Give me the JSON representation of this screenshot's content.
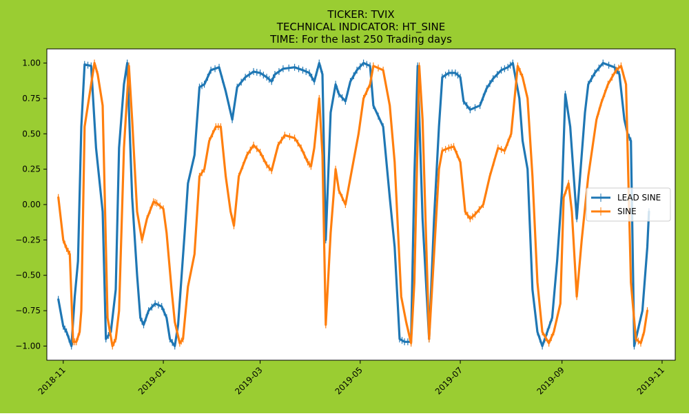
{
  "figure": {
    "background": "#9ACD32"
  },
  "chart_data": {
    "type": "line",
    "title_lines": [
      "TICKER:  TVIX",
      "TECHNICAL INDICATOR:  HT_SINE",
      "TIME: For the last 250 Trading days"
    ],
    "xlabel": "",
    "ylabel": "",
    "x_type": "date",
    "xlim": [
      "2018-10-22",
      "2019-11-09"
    ],
    "ylim": [
      -1.1,
      1.1
    ],
    "yticks": [
      -1.0,
      -0.75,
      -0.5,
      -0.25,
      0.0,
      0.25,
      0.5,
      0.75,
      1.0
    ],
    "ytick_labels": [
      "−1.00",
      "−0.75",
      "−0.50",
      "−0.25",
      "0.00",
      "0.25",
      "0.50",
      "0.75",
      "1.00"
    ],
    "xticks": [
      "2018-11-01",
      "2019-01-01",
      "2019-03-01",
      "2019-05-01",
      "2019-07-01",
      "2019-09-01",
      "2019-11-01"
    ],
    "xtick_labels": [
      "2018-11",
      "2019-01",
      "2019-03",
      "2019-05",
      "2019-07",
      "2019-09",
      "2019-11"
    ],
    "grid": false,
    "legend_position": "center-right",
    "series": [
      {
        "name": "LEAD SINE",
        "color": "#1f77b4",
        "points": [
          [
            "2018-10-29",
            -0.67
          ],
          [
            "2018-11-01",
            -0.86
          ],
          [
            "2018-11-03",
            -0.9
          ],
          [
            "2018-11-06",
            -1.0
          ],
          [
            "2018-11-08",
            -0.65
          ],
          [
            "2018-11-10",
            -0.4
          ],
          [
            "2018-11-12",
            0.55
          ],
          [
            "2018-11-14",
            0.99
          ],
          [
            "2018-11-18",
            0.98
          ],
          [
            "2018-11-21",
            0.4
          ],
          [
            "2018-11-25",
            -0.05
          ],
          [
            "2018-11-27",
            -0.95
          ],
          [
            "2018-11-30",
            -0.9
          ],
          [
            "2018-12-03",
            -0.6
          ],
          [
            "2018-12-05",
            0.4
          ],
          [
            "2018-12-08",
            0.85
          ],
          [
            "2018-12-10",
            1.0
          ],
          [
            "2018-12-13",
            0.05
          ],
          [
            "2018-12-16",
            -0.5
          ],
          [
            "2018-12-18",
            -0.8
          ],
          [
            "2018-12-20",
            -0.85
          ],
          [
            "2018-12-23",
            -0.75
          ],
          [
            "2018-12-27",
            -0.7
          ],
          [
            "2018-12-31",
            -0.72
          ],
          [
            "2019-01-03",
            -0.8
          ],
          [
            "2019-01-05",
            -0.95
          ],
          [
            "2019-01-08",
            -1.0
          ],
          [
            "2019-01-10",
            -0.85
          ],
          [
            "2019-01-14",
            -0.2
          ],
          [
            "2019-01-16",
            0.15
          ],
          [
            "2019-01-20",
            0.35
          ],
          [
            "2019-01-23",
            0.83
          ],
          [
            "2019-01-26",
            0.85
          ],
          [
            "2019-01-30",
            0.95
          ],
          [
            "2019-02-04",
            0.97
          ],
          [
            "2019-02-08",
            0.8
          ],
          [
            "2019-02-12",
            0.6
          ],
          [
            "2019-02-15",
            0.83
          ],
          [
            "2019-02-20",
            0.9
          ],
          [
            "2019-02-25",
            0.94
          ],
          [
            "2019-03-01",
            0.93
          ],
          [
            "2019-03-05",
            0.9
          ],
          [
            "2019-03-08",
            0.87
          ],
          [
            "2019-03-10",
            0.92
          ],
          [
            "2019-03-15",
            0.96
          ],
          [
            "2019-03-22",
            0.97
          ],
          [
            "2019-03-27",
            0.95
          ],
          [
            "2019-03-31",
            0.93
          ],
          [
            "2019-04-03",
            0.87
          ],
          [
            "2019-04-06",
            1.0
          ],
          [
            "2019-04-08",
            0.92
          ],
          [
            "2019-04-10",
            -0.25
          ],
          [
            "2019-04-13",
            0.65
          ],
          [
            "2019-04-16",
            0.85
          ],
          [
            "2019-04-18",
            0.78
          ],
          [
            "2019-04-22",
            0.73
          ],
          [
            "2019-04-25",
            0.87
          ],
          [
            "2019-04-29",
            0.95
          ],
          [
            "2019-05-03",
            1.0
          ],
          [
            "2019-05-07",
            0.98
          ],
          [
            "2019-05-09",
            0.7
          ],
          [
            "2019-05-15",
            0.55
          ],
          [
            "2019-05-19",
            0.05
          ],
          [
            "2019-05-22",
            -0.3
          ],
          [
            "2019-05-25",
            -0.95
          ],
          [
            "2019-05-28",
            -0.97
          ],
          [
            "2019-06-01",
            -0.97
          ],
          [
            "2019-06-03",
            0.2
          ],
          [
            "2019-06-05",
            0.98
          ],
          [
            "2019-06-08",
            -0.1
          ],
          [
            "2019-06-12",
            -0.95
          ],
          [
            "2019-06-15",
            -0.1
          ],
          [
            "2019-06-18",
            0.55
          ],
          [
            "2019-06-20",
            0.9
          ],
          [
            "2019-06-24",
            0.93
          ],
          [
            "2019-06-28",
            0.93
          ],
          [
            "2019-07-01",
            0.9
          ],
          [
            "2019-07-03",
            0.73
          ],
          [
            "2019-07-07",
            0.67
          ],
          [
            "2019-07-13",
            0.7
          ],
          [
            "2019-07-17",
            0.82
          ],
          [
            "2019-07-21",
            0.89
          ],
          [
            "2019-07-26",
            0.95
          ],
          [
            "2019-07-30",
            0.97
          ],
          [
            "2019-08-02",
            1.0
          ],
          [
            "2019-08-06",
            0.75
          ],
          [
            "2019-08-08",
            0.45
          ],
          [
            "2019-08-11",
            0.25
          ],
          [
            "2019-08-14",
            -0.6
          ],
          [
            "2019-08-17",
            -0.9
          ],
          [
            "2019-08-20",
            -1.0
          ],
          [
            "2019-08-23",
            -0.9
          ],
          [
            "2019-08-26",
            -0.8
          ],
          [
            "2019-08-29",
            -0.4
          ],
          [
            "2019-09-01",
            0.1
          ],
          [
            "2019-09-03",
            0.78
          ],
          [
            "2019-09-06",
            0.55
          ],
          [
            "2019-09-10",
            -0.1
          ],
          [
            "2019-09-12",
            0.2
          ],
          [
            "2019-09-15",
            0.65
          ],
          [
            "2019-09-17",
            0.85
          ],
          [
            "2019-09-21",
            0.93
          ],
          [
            "2019-09-26",
            1.0
          ],
          [
            "2019-10-03",
            0.97
          ],
          [
            "2019-10-06",
            0.92
          ],
          [
            "2019-10-09",
            0.6
          ],
          [
            "2019-10-11",
            0.5
          ],
          [
            "2019-10-13",
            0.45
          ],
          [
            "2019-10-15",
            -1.0
          ],
          [
            "2019-10-18",
            -0.85
          ],
          [
            "2019-10-20",
            -0.75
          ],
          [
            "2019-10-23",
            -0.3
          ],
          [
            "2019-10-24",
            -0.05
          ]
        ]
      },
      {
        "name": "SINE",
        "color": "#ff7f0e",
        "points": [
          [
            "2018-10-29",
            0.05
          ],
          [
            "2018-11-01",
            -0.25
          ],
          [
            "2018-11-03",
            -0.31
          ],
          [
            "2018-11-05",
            -0.35
          ],
          [
            "2018-11-07",
            -0.97
          ],
          [
            "2018-11-09",
            -0.97
          ],
          [
            "2018-11-11",
            -0.9
          ],
          [
            "2018-11-12",
            -0.75
          ],
          [
            "2018-11-14",
            0.55
          ],
          [
            "2018-11-18",
            0.85
          ],
          [
            "2018-11-20",
            1.0
          ],
          [
            "2018-11-22",
            0.92
          ],
          [
            "2018-11-25",
            0.7
          ],
          [
            "2018-11-28",
            -0.8
          ],
          [
            "2018-12-01",
            -1.0
          ],
          [
            "2018-12-03",
            -0.95
          ],
          [
            "2018-12-05",
            -0.75
          ],
          [
            "2018-12-08",
            0.4
          ],
          [
            "2018-12-11",
            0.98
          ],
          [
            "2018-12-13",
            0.6
          ],
          [
            "2018-12-16",
            -0.05
          ],
          [
            "2018-12-19",
            -0.25
          ],
          [
            "2018-12-22",
            -0.1
          ],
          [
            "2018-12-26",
            0.02
          ],
          [
            "2018-12-28",
            0.01
          ],
          [
            "2019-01-01",
            -0.03
          ],
          [
            "2019-01-03",
            -0.2
          ],
          [
            "2019-01-06",
            -0.6
          ],
          [
            "2019-01-08",
            -0.83
          ],
          [
            "2019-01-11",
            -0.98
          ],
          [
            "2019-01-13",
            -0.95
          ],
          [
            "2019-01-16",
            -0.58
          ],
          [
            "2019-01-20",
            -0.35
          ],
          [
            "2019-01-23",
            0.2
          ],
          [
            "2019-01-26",
            0.25
          ],
          [
            "2019-01-29",
            0.45
          ],
          [
            "2019-02-02",
            0.55
          ],
          [
            "2019-02-05",
            0.55
          ],
          [
            "2019-02-08",
            0.2
          ],
          [
            "2019-02-11",
            -0.05
          ],
          [
            "2019-02-13",
            -0.15
          ],
          [
            "2019-02-16",
            0.2
          ],
          [
            "2019-02-21",
            0.35
          ],
          [
            "2019-02-25",
            0.42
          ],
          [
            "2019-03-01",
            0.37
          ],
          [
            "2019-03-05",
            0.28
          ],
          [
            "2019-03-08",
            0.24
          ],
          [
            "2019-03-12",
            0.42
          ],
          [
            "2019-03-16",
            0.49
          ],
          [
            "2019-03-22",
            0.47
          ],
          [
            "2019-03-26",
            0.4
          ],
          [
            "2019-03-30",
            0.3
          ],
          [
            "2019-04-01",
            0.27
          ],
          [
            "2019-04-03",
            0.4
          ],
          [
            "2019-04-06",
            0.75
          ],
          [
            "2019-04-08",
            0.35
          ],
          [
            "2019-04-10",
            -0.85
          ],
          [
            "2019-04-13",
            -0.2
          ],
          [
            "2019-04-16",
            0.25
          ],
          [
            "2019-04-18",
            0.1
          ],
          [
            "2019-04-22",
            0.0
          ],
          [
            "2019-04-26",
            0.25
          ],
          [
            "2019-04-30",
            0.5
          ],
          [
            "2019-05-03",
            0.75
          ],
          [
            "2019-05-07",
            0.85
          ],
          [
            "2019-05-09",
            0.98
          ],
          [
            "2019-05-15",
            0.95
          ],
          [
            "2019-05-19",
            0.7
          ],
          [
            "2019-05-22",
            0.3
          ],
          [
            "2019-05-26",
            -0.65
          ],
          [
            "2019-05-29",
            -0.83
          ],
          [
            "2019-06-01",
            -0.98
          ],
          [
            "2019-06-03",
            -0.55
          ],
          [
            "2019-06-06",
            0.98
          ],
          [
            "2019-06-08",
            0.6
          ],
          [
            "2019-06-12",
            -0.95
          ],
          [
            "2019-06-15",
            -0.35
          ],
          [
            "2019-06-18",
            0.25
          ],
          [
            "2019-06-20",
            0.38
          ],
          [
            "2019-06-24",
            0.4
          ],
          [
            "2019-06-27",
            0.41
          ],
          [
            "2019-07-01",
            0.3
          ],
          [
            "2019-07-04",
            -0.05
          ],
          [
            "2019-07-07",
            -0.1
          ],
          [
            "2019-07-10",
            -0.07
          ],
          [
            "2019-07-15",
            0.0
          ],
          [
            "2019-07-19",
            0.2
          ],
          [
            "2019-07-24",
            0.4
          ],
          [
            "2019-07-28",
            0.38
          ],
          [
            "2019-08-01",
            0.5
          ],
          [
            "2019-08-05",
            0.98
          ],
          [
            "2019-08-08",
            0.9
          ],
          [
            "2019-08-11",
            0.75
          ],
          [
            "2019-08-14",
            0.2
          ],
          [
            "2019-08-17",
            -0.55
          ],
          [
            "2019-08-20",
            -0.9
          ],
          [
            "2019-08-24",
            -0.98
          ],
          [
            "2019-08-27",
            -0.9
          ],
          [
            "2019-08-31",
            -0.7
          ],
          [
            "2019-09-02",
            0.05
          ],
          [
            "2019-09-05",
            0.15
          ],
          [
            "2019-09-07",
            -0.05
          ],
          [
            "2019-09-10",
            -0.65
          ],
          [
            "2019-09-13",
            -0.25
          ],
          [
            "2019-09-17",
            0.2
          ],
          [
            "2019-09-22",
            0.6
          ],
          [
            "2019-09-25",
            0.72
          ],
          [
            "2019-09-29",
            0.85
          ],
          [
            "2019-10-04",
            0.95
          ],
          [
            "2019-10-07",
            0.98
          ],
          [
            "2019-10-10",
            0.85
          ],
          [
            "2019-10-13",
            -0.55
          ],
          [
            "2019-10-16",
            -0.95
          ],
          [
            "2019-10-19",
            -0.98
          ],
          [
            "2019-10-21",
            -0.9
          ],
          [
            "2019-10-23",
            -0.75
          ]
        ]
      }
    ]
  }
}
